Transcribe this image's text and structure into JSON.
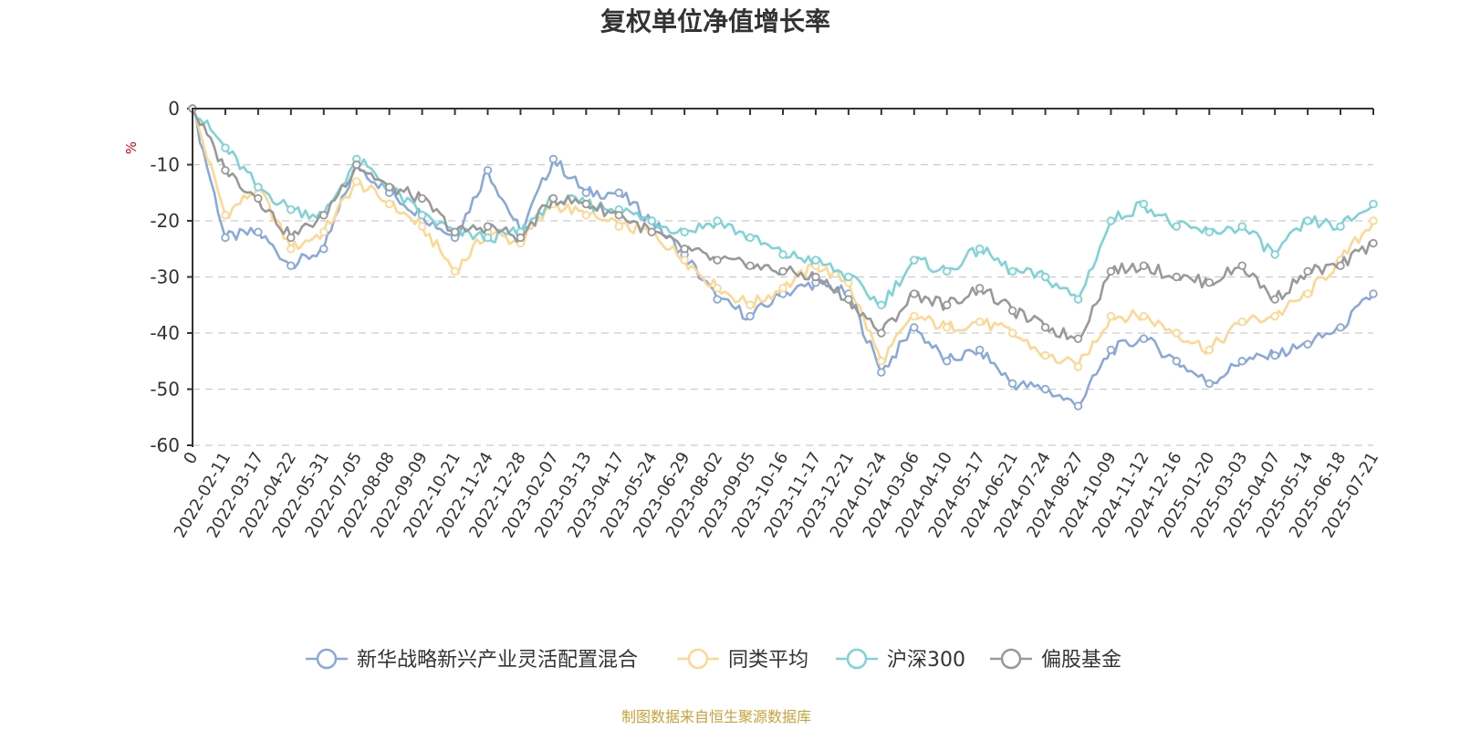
{
  "chart_data": {
    "type": "line",
    "title": "复权单位净值增长率",
    "ylabel": "%",
    "ylim": [
      -60,
      0
    ],
    "y_ticks": [
      "0",
      "-10",
      "-20",
      "-30",
      "-40",
      "-50",
      "-60"
    ],
    "y_tick_values": [
      0,
      -10,
      -20,
      -30,
      -40,
      -50,
      -60
    ],
    "categories": [
      "0",
      "2022-02-11",
      "2022-03-17",
      "2022-04-22",
      "2022-05-31",
      "2022-07-05",
      "2022-08-08",
      "2022-09-09",
      "2022-10-21",
      "2022-11-24",
      "2022-12-28",
      "2023-02-07",
      "2023-03-13",
      "2023-04-17",
      "2023-05-24",
      "2023-06-29",
      "2023-08-02",
      "2023-09-05",
      "2023-10-16",
      "2023-11-17",
      "2023-12-21",
      "2024-01-24",
      "2024-03-06",
      "2024-04-10",
      "2024-05-17",
      "2024-06-21",
      "2024-07-24",
      "2024-08-27",
      "2024-10-09",
      "2024-11-12",
      "2024-12-16",
      "2025-01-20",
      "2025-03-03",
      "2025-04-07",
      "2025-05-14",
      "2025-06-18",
      "2025-07-21"
    ],
    "grid": true,
    "legend_position": "bottom",
    "series": [
      {
        "name": "新华战略新兴产业灵活配置混合",
        "color": "#8aa9d9",
        "values": [
          0,
          -23,
          -22,
          -28,
          -25,
          -10,
          -15,
          -19,
          -23,
          -11,
          -22,
          -9,
          -15,
          -15,
          -20,
          -26,
          -34,
          -37,
          -33,
          -31,
          -33,
          -47,
          -39,
          -45,
          -43,
          -49,
          -50,
          -53,
          -43,
          -41,
          -45,
          -49,
          -45,
          -44,
          -42,
          -39,
          -33
        ]
      },
      {
        "name": "同类平均",
        "color": "#fdd794",
        "values": [
          0,
          -19,
          -14,
          -25,
          -22,
          -13,
          -17,
          -21,
          -29,
          -22,
          -24,
          -17,
          -19,
          -21,
          -22,
          -27,
          -32,
          -35,
          -32,
          -28,
          -31,
          -45,
          -37,
          -39,
          -38,
          -40,
          -44,
          -46,
          -37,
          -37,
          -40,
          -43,
          -38,
          -37,
          -33,
          -27,
          -20
        ]
      },
      {
        "name": "沪深300",
        "color": "#7fd3d6",
        "values": [
          0,
          -7,
          -14,
          -18,
          -19,
          -9,
          -14,
          -19,
          -22,
          -23,
          -22,
          -16,
          -17,
          -18,
          -20,
          -22,
          -20,
          -23,
          -26,
          -27,
          -30,
          -35,
          -27,
          -29,
          -25,
          -29,
          -30,
          -34,
          -20,
          -17,
          -21,
          -22,
          -21,
          -26,
          -20,
          -21,
          -17
        ]
      },
      {
        "name": "偏股基金",
        "color": "#999999",
        "values": [
          0,
          -11,
          -16,
          -23,
          -19,
          -10,
          -14,
          -16,
          -22,
          -21,
          -23,
          -16,
          -17,
          -19,
          -22,
          -25,
          -27,
          -28,
          -29,
          -30,
          -34,
          -40,
          -33,
          -35,
          -32,
          -36,
          -39,
          -41,
          -29,
          -28,
          -30,
          -31,
          -28,
          -34,
          -29,
          -28,
          -24
        ]
      }
    ]
  },
  "source_note": "制图数据来自恒生聚源数据库"
}
